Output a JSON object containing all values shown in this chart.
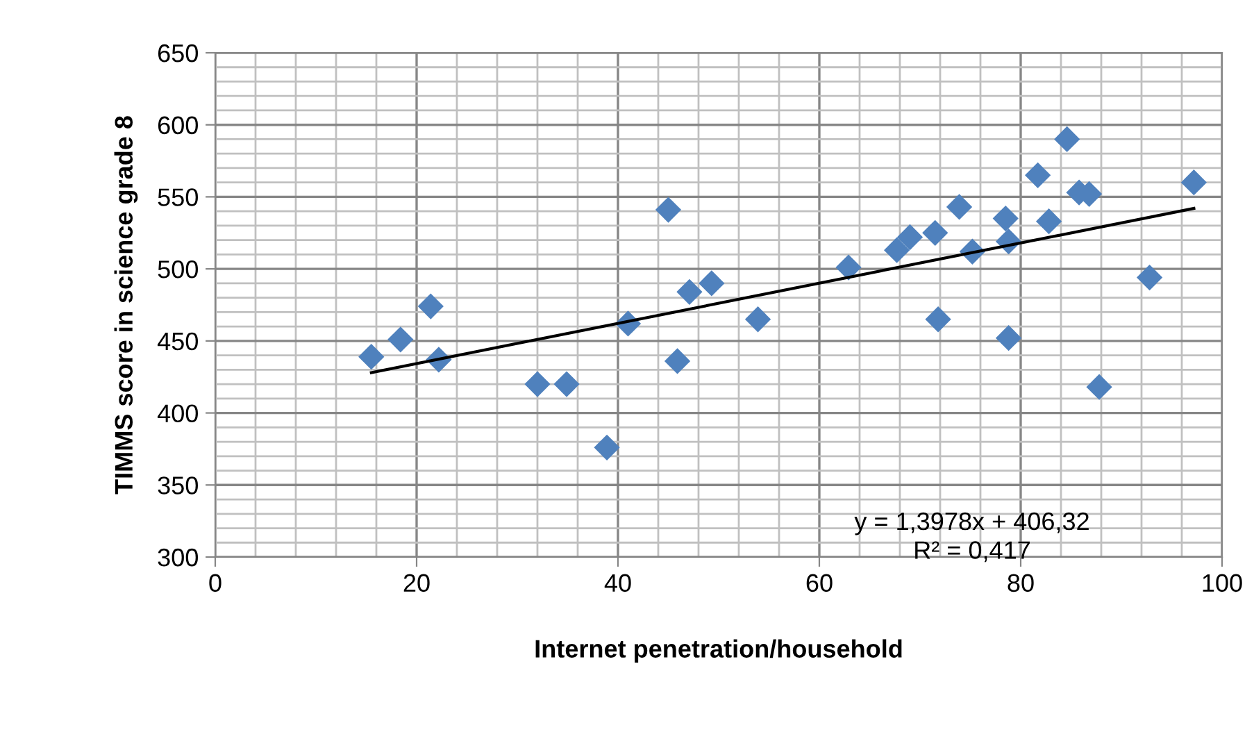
{
  "chart_data": {
    "type": "scatter",
    "xlabel": "Internet penetration/household",
    "ylabel": "TIMMS score in science grade 8",
    "xlim": [
      0,
      100
    ],
    "xticks": [
      0,
      20,
      40,
      60,
      80,
      100
    ],
    "ylim": [
      300,
      650
    ],
    "yticks": [
      300,
      350,
      400,
      450,
      500,
      550,
      600,
      650
    ],
    "grid": true,
    "marker": "diamond",
    "series": [
      {
        "color": "#4f81bd",
        "x": [
          15.5,
          18.4,
          21.4,
          22.2,
          32,
          34.9,
          38.9,
          41,
          45.9,
          47.1,
          49.3,
          53.9,
          62.9,
          67.7,
          69,
          71.5,
          71.8,
          73.9,
          75.2,
          78.5,
          78.8,
          78.8,
          81.7,
          82.8,
          84.6,
          85.8,
          86.8,
          87.8,
          92.8,
          97.2,
          45
        ],
        "values": [
          439,
          451,
          474,
          437,
          420,
          420,
          376,
          462,
          436,
          484,
          490,
          465,
          501,
          513,
          522,
          525,
          465,
          543,
          512,
          535,
          519,
          452,
          565,
          533,
          590,
          553,
          552,
          418,
          494,
          560,
          541
        ]
      },
      {
        "type": "line",
        "color": "#000000",
        "marker": "none",
        "x": [
          15.5,
          97.2
        ],
        "values": [
          428,
          542
        ]
      }
    ],
    "annotations": [
      "y = 1,3978x + 406,32\nR² = 0,417"
    ]
  }
}
